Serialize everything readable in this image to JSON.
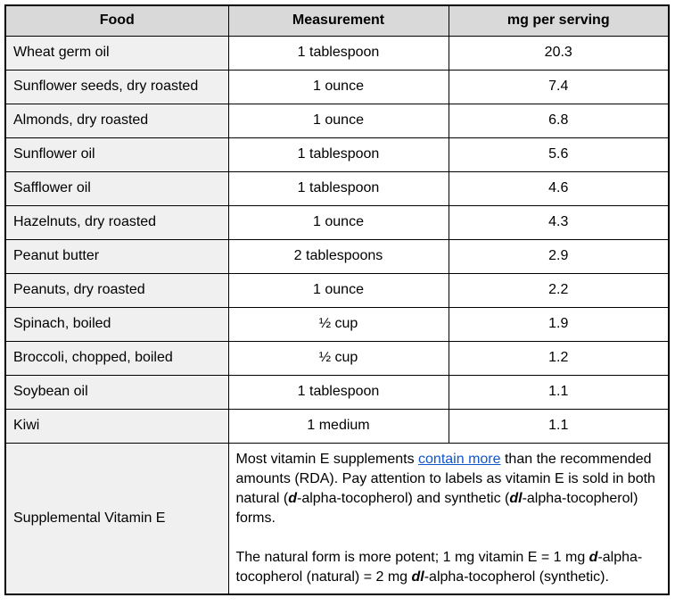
{
  "table": {
    "headers": {
      "food": "Food",
      "measurement": "Measurement",
      "mg": "mg per serving"
    },
    "rows": [
      {
        "food": "Wheat germ oil",
        "measurement": "1 tablespoon",
        "mg": "20.3"
      },
      {
        "food": "Sunflower seeds, dry roasted",
        "measurement": "1 ounce",
        "mg": "7.4"
      },
      {
        "food": "Almonds, dry roasted",
        "measurement": "1 ounce",
        "mg": "6.8"
      },
      {
        "food": "Sunflower oil",
        "measurement": "1 tablespoon",
        "mg": "5.6"
      },
      {
        "food": "Safflower oil",
        "measurement": "1 tablespoon",
        "mg": "4.6"
      },
      {
        "food": "Hazelnuts, dry roasted",
        "measurement": "1 ounce",
        "mg": "4.3"
      },
      {
        "food": "Peanut butter",
        "measurement": "2 tablespoons",
        "mg": "2.9"
      },
      {
        "food": "Peanuts, dry roasted",
        "measurement": "1 ounce",
        "mg": "2.2"
      },
      {
        "food": "Spinach, boiled",
        "measurement": "½ cup",
        "mg": "1.9"
      },
      {
        "food": "Broccoli, chopped, boiled",
        "measurement": "½ cup",
        "mg": "1.2"
      },
      {
        "food": "Soybean oil",
        "measurement": "1 tablespoon",
        "mg": "1.1"
      },
      {
        "food": "Kiwi",
        "measurement": "1 medium",
        "mg": "1.1"
      }
    ],
    "supplemental": {
      "label": "Supplemental Vitamin E",
      "paragraphs": [
        {
          "segments": [
            {
              "text": "Most vitamin E supplements "
            },
            {
              "text": "contain more",
              "style": "link"
            },
            {
              "text": " than the recommended amounts (RDA). Pay attention to labels as vitamin E is sold in both natural ("
            },
            {
              "text": "d",
              "style": "em"
            },
            {
              "text": "-alpha-tocopherol) and synthetic ("
            },
            {
              "text": "dl",
              "style": "em"
            },
            {
              "text": "-alpha-tocopherol) forms."
            }
          ]
        },
        {
          "segments": [
            {
              "text": "The natural form is more potent; 1 mg vitamin E = 1 mg "
            },
            {
              "text": "d",
              "style": "em"
            },
            {
              "text": "-alpha-tocopherol (natural) = 2 mg "
            },
            {
              "text": "dl",
              "style": "em"
            },
            {
              "text": "-alpha-tocopherol (synthetic)."
            }
          ]
        }
      ]
    }
  },
  "colors": {
    "header_bg": "#d9d9d9",
    "label_column_bg": "#f0f0f0",
    "border": "#000000",
    "link": "#1155cc"
  }
}
